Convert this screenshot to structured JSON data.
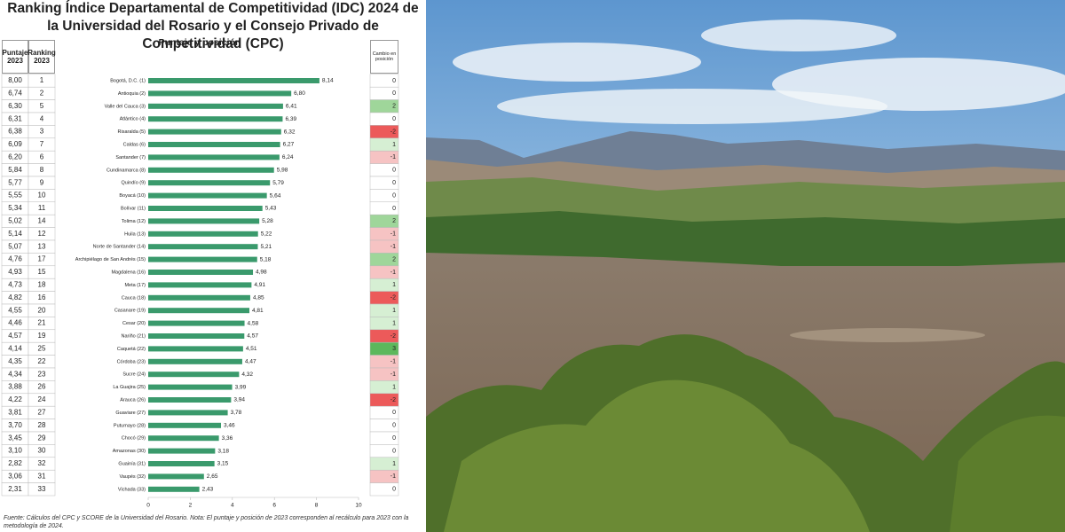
{
  "chart_data": {
    "type": "bar",
    "orientation": "horizontal",
    "title": "Ranking Índice Departamental de Competitividad (IDC) 2024 de la Universidad del Rosario y el Consejo Privado de Competitividad (CPC)",
    "subtitle": "Puntaje y posición",
    "categories": [
      "Bogotá, D.C. (1)",
      "Antioquia (2)",
      "Valle del Cauca (3)",
      "Atlántico (4)",
      "Risaralda (5)",
      "Caldas (6)",
      "Santander (7)",
      "Cundinamarca (8)",
      "Quindío (9)",
      "Boyacá (10)",
      "Bolívar (11)",
      "Tolima (12)",
      "Huila (13)",
      "Norte de Santander (14)",
      "Archipiélago de San Andrés (15)",
      "Magdalena (16)",
      "Meta (17)",
      "Cauca (18)",
      "Casanare (19)",
      "Cesar (20)",
      "Nariño (21)",
      "Caquetá (22)",
      "Córdoba (23)",
      "Sucre (24)",
      "La Guajira (25)",
      "Arauca (26)",
      "Guaviare (27)",
      "Putumayo (28)",
      "Chocó (29)",
      "Amazonas (30)",
      "Guainía (31)",
      "Vaupés (32)",
      "Vichada (33)"
    ],
    "values": [
      8.14,
      6.8,
      6.41,
      6.39,
      6.32,
      6.27,
      6.24,
      5.98,
      5.79,
      5.64,
      5.43,
      5.28,
      5.22,
      5.21,
      5.18,
      4.98,
      4.91,
      4.85,
      4.81,
      4.58,
      4.57,
      4.51,
      4.47,
      4.32,
      3.99,
      3.94,
      3.78,
      3.46,
      3.36,
      3.18,
      3.15,
      2.65,
      2.43
    ],
    "value_labels": [
      "8,14",
      "6,80",
      "6,41",
      "6,39",
      "6,32",
      "6,27",
      "6,24",
      "5,98",
      "5,79",
      "5,64",
      "5,43",
      "5,28",
      "5,22",
      "5,21",
      "5,18",
      "4,98",
      "4,91",
      "4,85",
      "4,81",
      "4,58",
      "4,57",
      "4,51",
      "4,47",
      "4,32",
      "3,99",
      "3,94",
      "3,78",
      "3,46",
      "3,36",
      "3,18",
      "3,15",
      "2,65",
      "2,43"
    ],
    "color": "#3a9a6c",
    "xlim": [
      0,
      10
    ],
    "xticks": [
      0,
      2,
      4,
      6,
      8,
      10
    ]
  },
  "table": {
    "headers": [
      "Puntaje 2023",
      "Ranking 2023"
    ],
    "puntaje_2023": [
      "8,00",
      "6,74",
      "6,30",
      "6,31",
      "6,38",
      "6,09",
      "6,20",
      "5,84",
      "5,77",
      "5,55",
      "5,34",
      "5,02",
      "5,14",
      "5,07",
      "4,76",
      "4,93",
      "4,73",
      "4,82",
      "4,55",
      "4,46",
      "4,57",
      "4,14",
      "4,35",
      "4,34",
      "3,88",
      "4,22",
      "3,81",
      "3,70",
      "3,45",
      "3,10",
      "2,82",
      "3,06",
      "2,31"
    ],
    "ranking_2023": [
      1,
      2,
      5,
      4,
      3,
      7,
      6,
      8,
      9,
      10,
      11,
      14,
      12,
      13,
      17,
      15,
      18,
      16,
      20,
      21,
      19,
      25,
      22,
      23,
      26,
      24,
      27,
      28,
      29,
      30,
      32,
      31,
      33
    ]
  },
  "cambio": {
    "header": "Cambio en posición",
    "values": [
      0,
      0,
      2,
      0,
      -2,
      1,
      -1,
      0,
      0,
      0,
      0,
      2,
      -1,
      -1,
      2,
      -1,
      1,
      -2,
      1,
      1,
      -2,
      3,
      -1,
      -1,
      1,
      -2,
      0,
      0,
      0,
      0,
      1,
      -1,
      0
    ]
  },
  "footnote": "Fuente: Cálculos del CPC y SCORE de la Universidad del Rosario. Nota: El puntaje y posición de 2023 corresponden al recálculo para 2023 con la metodología de 2024."
}
